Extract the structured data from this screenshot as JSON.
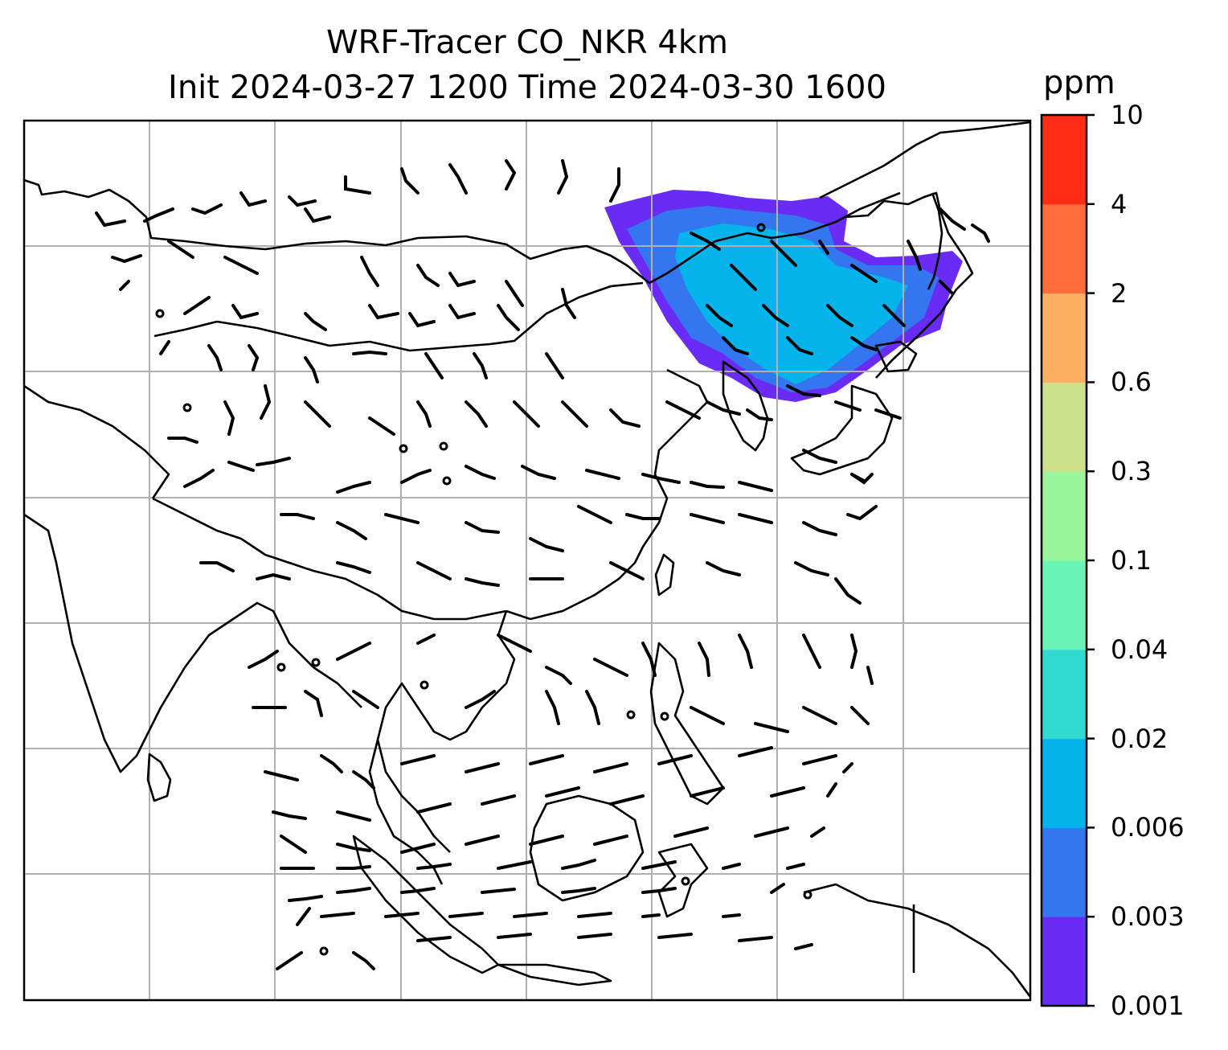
{
  "title": {
    "line1": "WRF-Tracer CO_NKR 4km",
    "line2": "Init 2024-03-27 1200 Time 2024-03-30 1600"
  },
  "colorbar": {
    "unit": "ppm",
    "levels": [
      "0.001",
      "0.003",
      "0.006",
      "0.02",
      "0.04",
      "0.1",
      "0.3",
      "0.6",
      "2",
      "4",
      "10"
    ],
    "colors": [
      "#6a2cf5",
      "#3376f0",
      "#04b4ea",
      "#30dad0",
      "#6af5b8",
      "#98f59a",
      "#cbe089",
      "#fdaf62",
      "#fe6d3d",
      "#fe2b16"
    ]
  },
  "map": {
    "plume_color_outer": "#6a2cf5",
    "plume_color_mid": "#3376f0",
    "plume_color_inner": "#04b4ea",
    "gridline_color": "#b0b0b0",
    "coastline_color": "#000000"
  }
}
